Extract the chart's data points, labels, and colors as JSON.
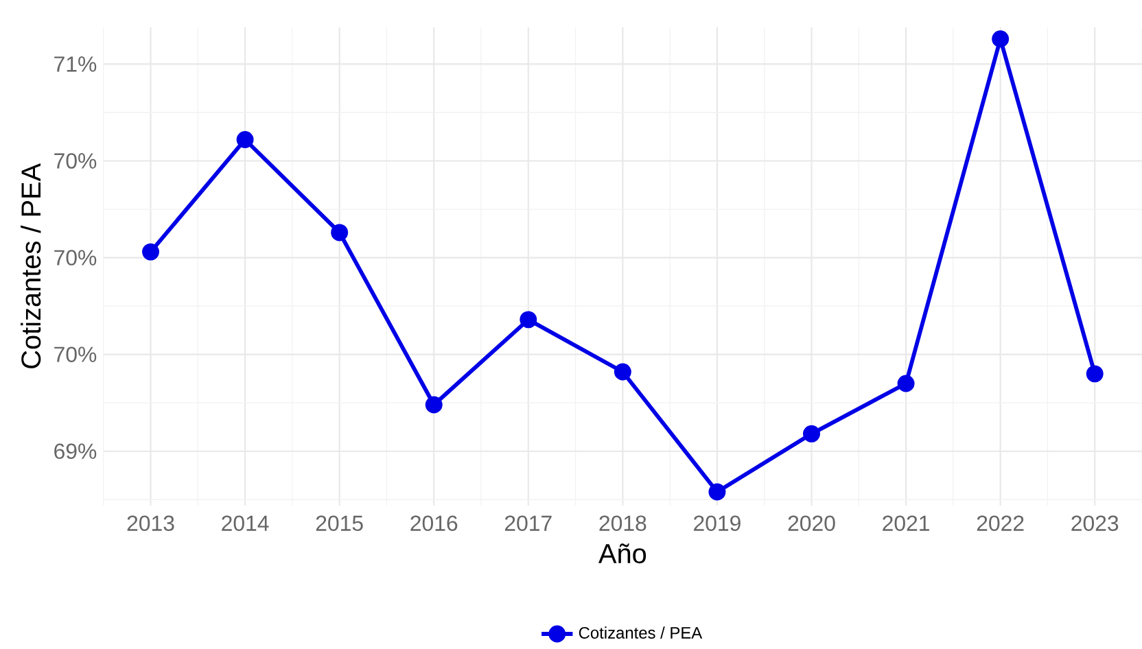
{
  "chart_data": {
    "type": "line",
    "xlabel": "Año",
    "ylabel": "Cotizantes / PEA",
    "categories": [
      "2013",
      "2014",
      "2015",
      "2016",
      "2017",
      "2018",
      "2019",
      "2020",
      "2021",
      "2022",
      "2023"
    ],
    "series": [
      {
        "name": "Cotizantes / PEA",
        "color": "#0000e6",
        "values": [
          70.03,
          70.61,
          70.13,
          69.24,
          69.68,
          69.41,
          68.79,
          69.09,
          69.35,
          71.13,
          69.4
        ]
      }
    ],
    "ylim": [
      68.72,
      71.19
    ],
    "yticks": [
      {
        "value": 69,
        "label": "69%"
      },
      {
        "value": 69.5,
        "label": "70%"
      },
      {
        "value": 70,
        "label": "70%"
      },
      {
        "value": 70.5,
        "label": "70%"
      },
      {
        "value": 71,
        "label": "71%"
      }
    ],
    "grid": true,
    "legend": "bottom",
    "marker": "circle",
    "line_style": "solid"
  }
}
